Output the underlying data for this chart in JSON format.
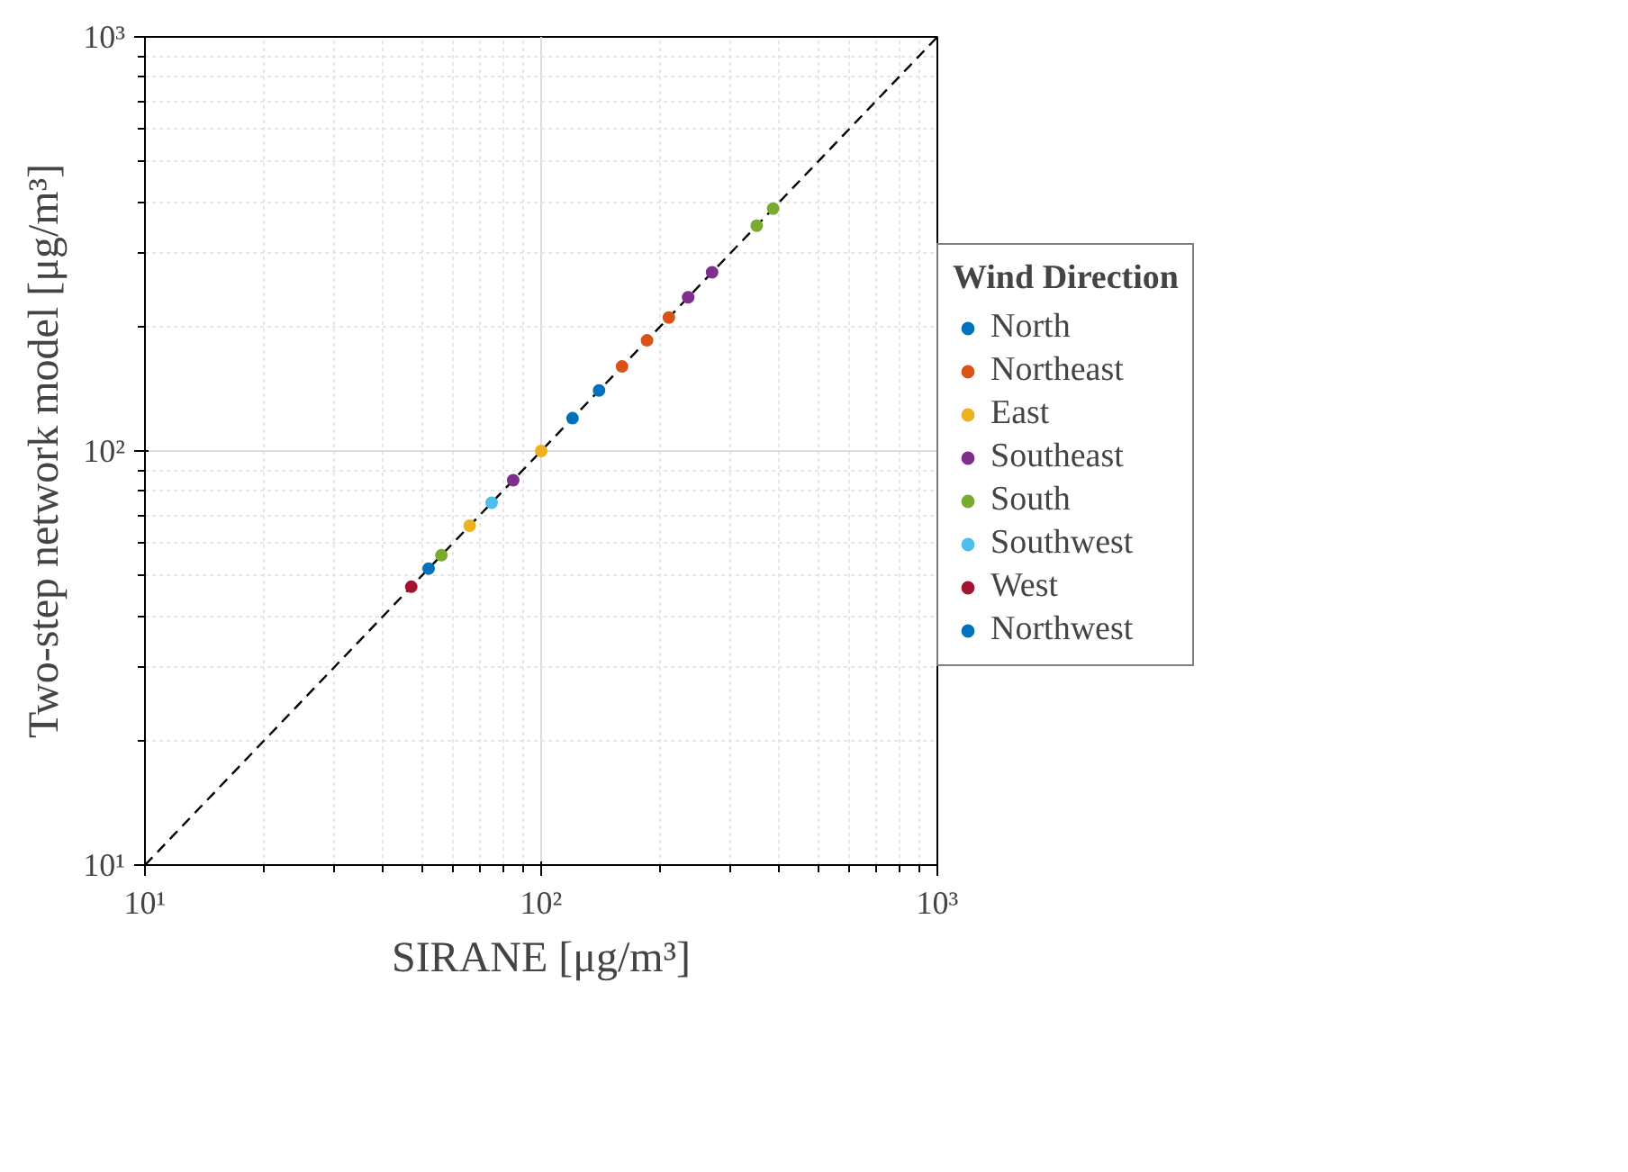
{
  "chart_data": {
    "type": "scatter",
    "xlabel": "SIRANE [μg/m³]",
    "ylabel": "Two-step network model [μg/m³]",
    "legend_title": "Wind Direction",
    "log": "xy",
    "grid": true,
    "legend": "right",
    "marker": "circle",
    "xlim": [
      10,
      1000
    ],
    "ylim": [
      10,
      1000
    ],
    "xticks": [
      {
        "value": 10,
        "label": "10¹"
      },
      {
        "value": 100,
        "label": "10²"
      },
      {
        "value": 1000,
        "label": "10³"
      }
    ],
    "yticks": [
      {
        "value": 10,
        "label": "10¹"
      },
      {
        "value": 100,
        "label": "10²"
      },
      {
        "value": 1000,
        "label": "10³"
      }
    ],
    "series": [
      {
        "type": "line",
        "color": "#000000",
        "line_style": "dashed",
        "marker": "none",
        "x": [
          10,
          1000
        ],
        "values": [
          10,
          1000
        ]
      },
      {
        "name": "North",
        "color": "#0072bd",
        "x": [
          120,
          140
        ],
        "values": [
          120,
          140
        ]
      },
      {
        "name": "Northeast",
        "color": "#d95319",
        "x": [
          160,
          185,
          210
        ],
        "values": [
          160,
          185,
          210
        ]
      },
      {
        "name": "East",
        "color": "#edb120",
        "x": [
          66,
          100
        ],
        "values": [
          66,
          100
        ]
      },
      {
        "name": "Southeast",
        "color": "#7e2f8e",
        "x": [
          85,
          235,
          270
        ],
        "values": [
          85,
          235,
          270
        ]
      },
      {
        "name": "South",
        "color": "#77ac30",
        "x": [
          56,
          350,
          385
        ],
        "values": [
          56,
          350,
          385
        ]
      },
      {
        "name": "Southwest",
        "color": "#4dbeee",
        "x": [
          75
        ],
        "values": [
          75
        ]
      },
      {
        "name": "West",
        "color": "#a2142f",
        "x": [
          47
        ],
        "values": [
          47
        ]
      },
      {
        "name": "Northwest",
        "color": "#0072bd",
        "x": [
          52
        ],
        "values": [
          52
        ]
      }
    ]
  }
}
